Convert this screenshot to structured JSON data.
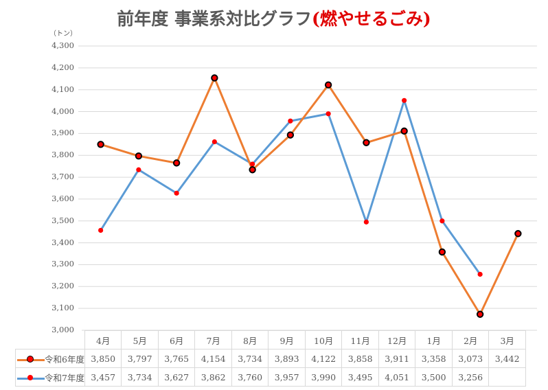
{
  "title": {
    "main": "前年度 事業系対比グラフ",
    "highlight": "(燃やせるごみ)",
    "highlight_color": "#e00000"
  },
  "y_axis": {
    "unit": "（トン）",
    "ticks": [
      "4,300",
      "4,200",
      "4,100",
      "4,000",
      "3,900",
      "3,800",
      "3,700",
      "3,600",
      "3,500",
      "3,400",
      "3,300",
      "3,200",
      "3,100",
      "3,000"
    ]
  },
  "table": {
    "months": [
      "4月",
      "5月",
      "6月",
      "7月",
      "8月",
      "9月",
      "10月",
      "11月",
      "12月",
      "1月",
      "2月",
      "3月"
    ],
    "rows": [
      {
        "label": "令和6年度",
        "values": [
          "3,850",
          "3,797",
          "3,765",
          "4,154",
          "3,734",
          "3,893",
          "4,122",
          "3,858",
          "3,911",
          "3,358",
          "3,073",
          "3,442"
        ]
      },
      {
        "label": "令和7年度",
        "values": [
          "3,457",
          "3,734",
          "3,627",
          "3,862",
          "3,760",
          "3,957",
          "3,990",
          "3,495",
          "4,051",
          "3,500",
          "3,256",
          ""
        ]
      }
    ]
  },
  "chart_data": {
    "type": "line",
    "title": "前年度 事業系対比グラフ(燃やせるごみ)",
    "xlabel": "",
    "ylabel": "（トン）",
    "ylim": [
      3000,
      4300
    ],
    "y_ticks": [
      3000,
      3100,
      3200,
      3300,
      3400,
      3500,
      3600,
      3700,
      3800,
      3900,
      4000,
      4100,
      4200,
      4300
    ],
    "grid": true,
    "legend_position": "data-table (bottom)",
    "categories": [
      "4月",
      "5月",
      "6月",
      "7月",
      "8月",
      "9月",
      "10月",
      "11月",
      "12月",
      "1月",
      "2月",
      "3月"
    ],
    "series": [
      {
        "name": "令和6年度",
        "color": "#ed7d31",
        "marker": "red dot with black outline",
        "values": [
          3850,
          3797,
          3765,
          4154,
          3734,
          3893,
          4122,
          3858,
          3911,
          3358,
          3073,
          3442
        ]
      },
      {
        "name": "令和7年度",
        "color": "#5b9bd5",
        "marker": "red dot",
        "values": [
          3457,
          3734,
          3627,
          3862,
          3760,
          3957,
          3990,
          3495,
          4051,
          3500,
          3256,
          null
        ]
      }
    ]
  }
}
